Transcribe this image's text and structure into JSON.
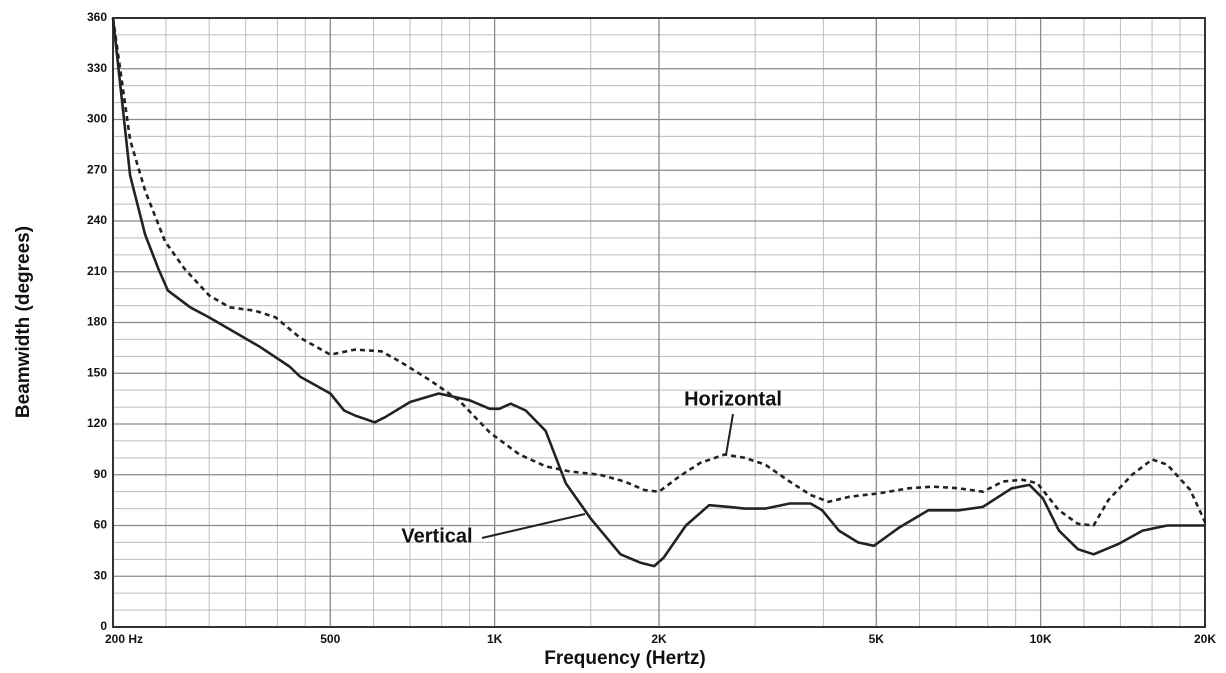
{
  "chart_data": {
    "type": "line",
    "x_label": "Frequency (Hertz)",
    "y_label": "Beamwidth (degrees)",
    "xscale": "log",
    "xlim": [
      200,
      20000
    ],
    "xticks": [
      {
        "value": 200,
        "label": "200  Hz"
      },
      500,
      {
        "value": 1000,
        "label": "1K"
      },
      {
        "value": 2000,
        "label": "2K"
      },
      {
        "value": 5000,
        "label": "5K"
      },
      {
        "value": 10000,
        "label": "10K"
      },
      {
        "value": 20000,
        "label": "20K"
      }
    ],
    "xminorticks": [
      250,
      300,
      350,
      400,
      450,
      600,
      700,
      800,
      900,
      1500,
      3000,
      4000,
      6000,
      7000,
      8000,
      9000,
      12000,
      14000,
      16000,
      18000
    ],
    "ylim": [
      0,
      360
    ],
    "yticks": [
      0,
      30,
      60,
      90,
      120,
      150,
      180,
      210,
      240,
      270,
      300,
      330,
      360
    ],
    "yminorticks": [
      10,
      20,
      40,
      50,
      70,
      80,
      100,
      110,
      130,
      140,
      160,
      170,
      190,
      200,
      220,
      230,
      250,
      260,
      280,
      290,
      310,
      320,
      340,
      350
    ],
    "grid": true,
    "series": [
      {
        "name": "Vertical",
        "color": "#222222",
        "style": "solid",
        "x": [
          200,
          215,
          229,
          242,
          252,
          277,
          300,
          327,
          370,
          421,
          440,
          500,
          530,
          555,
          603,
          630,
          700,
          790,
          900,
          980,
          1020,
          1070,
          1140,
          1240,
          1350,
          1500,
          1700,
          1850,
          1960,
          2040,
          2240,
          2470,
          2690,
          2870,
          3130,
          3470,
          3790,
          3980,
          4270,
          4630,
          4950,
          5520,
          6230,
          7080,
          7840,
          8850,
          9540,
          10100,
          10800,
          11700,
          12500,
          13870,
          15370,
          17050,
          20000
        ],
        "values": [
          360,
          267,
          232,
          212,
          199,
          189,
          183,
          176,
          166,
          154,
          148,
          138,
          128,
          125,
          121,
          124,
          133,
          138,
          134,
          129,
          129,
          132,
          128,
          116,
          85,
          64,
          43,
          38,
          36,
          41,
          60,
          72,
          71,
          70,
          70,
          73,
          73,
          69,
          57,
          50,
          48,
          59,
          69,
          69,
          71,
          82,
          84,
          76,
          57,
          46,
          43,
          49,
          57,
          60,
          60
        ]
      },
      {
        "name": "Horizontal",
        "color": "#222222",
        "style": "dashed",
        "x": [
          200,
          215,
          229,
          249,
          270,
          300,
          327,
          364,
          397,
          440,
          500,
          555,
          620,
          670,
          760,
          860,
          980,
          1110,
          1240,
          1370,
          1560,
          1730,
          1880,
          2000,
          2180,
          2380,
          2640,
          2870,
          3130,
          3470,
          3790,
          4090,
          4470,
          5050,
          5730,
          6350,
          7080,
          7840,
          8530,
          9260,
          9860,
          10800,
          11700,
          12500,
          13300,
          14700,
          16000,
          17050,
          18800,
          20000
        ],
        "values": [
          360,
          288,
          258,
          228,
          212,
          196,
          189,
          187,
          183,
          171,
          161,
          164,
          163,
          157,
          146,
          134,
          115,
          102,
          95,
          92,
          90,
          86,
          81,
          80,
          89,
          97,
          102,
          100,
          96,
          86,
          78,
          74,
          77,
          79,
          82,
          83,
          82,
          80,
          86,
          87,
          85,
          69,
          61,
          60,
          75,
          90,
          99,
          96,
          81,
          62
        ]
      }
    ]
  }
}
